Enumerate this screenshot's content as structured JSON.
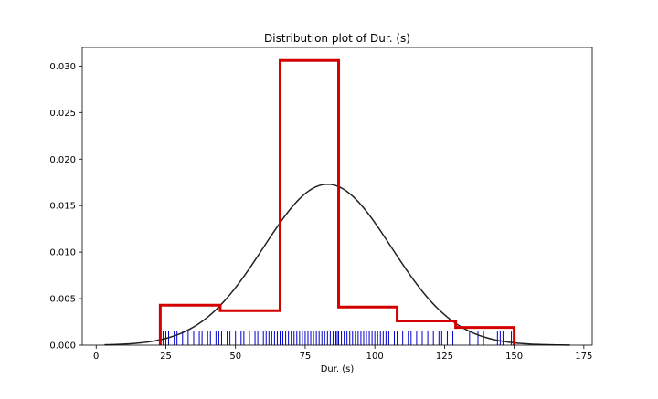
{
  "chart_data": {
    "type": "histogram",
    "title": "Distribution plot of Dur. (s)",
    "xlabel": "Dur. (s)",
    "ylabel": "",
    "xlim": [
      -5,
      178
    ],
    "ylim": [
      0,
      0.032
    ],
    "x_ticks": [
      0,
      25,
      50,
      75,
      100,
      125,
      150,
      175
    ],
    "y_ticks": [
      0.0,
      0.005,
      0.01,
      0.015,
      0.02,
      0.025,
      0.03
    ],
    "x_tick_labels": [
      "0",
      "25",
      "50",
      "75",
      "100",
      "125",
      "150",
      "175"
    ],
    "y_tick_labels": [
      "0.000",
      "0.005",
      "0.010",
      "0.015",
      "0.020",
      "0.025",
      "0.030"
    ],
    "grid": false,
    "legend": "none",
    "colors": {
      "histogram": "#d40000",
      "kde": "#222222",
      "rug": "#0000cc",
      "frame": "#000000"
    },
    "histogram": {
      "bin_edges": [
        23,
        44.5,
        66,
        87,
        108,
        129,
        150
      ],
      "densities": [
        0.0043,
        0.0037,
        0.0306,
        0.0041,
        0.0026,
        0.0019
      ]
    },
    "kde_curve": {
      "mean": 83,
      "sd": 23,
      "peak_density": 0.0173,
      "x_range": [
        3,
        170
      ]
    },
    "rug_values": [
      24,
      25,
      26,
      28,
      29,
      31,
      33,
      35,
      37,
      38,
      40,
      41,
      43,
      44,
      45,
      47,
      48,
      50,
      52,
      53,
      55,
      57,
      58,
      60,
      61,
      62,
      63,
      64,
      65,
      66,
      67,
      68,
      69,
      70,
      71,
      72,
      73,
      74,
      75,
      76,
      77,
      78,
      79,
      80,
      81,
      82,
      83,
      84,
      85,
      86,
      86.5,
      87,
      88,
      89,
      90,
      91,
      92,
      93,
      94,
      95,
      96,
      97,
      98,
      99,
      100,
      101,
      102,
      103,
      104,
      105,
      107,
      108,
      110,
      112,
      113,
      115,
      117,
      119,
      121,
      123,
      124,
      126,
      128,
      134,
      137,
      139,
      144,
      145,
      146,
      149
    ]
  }
}
